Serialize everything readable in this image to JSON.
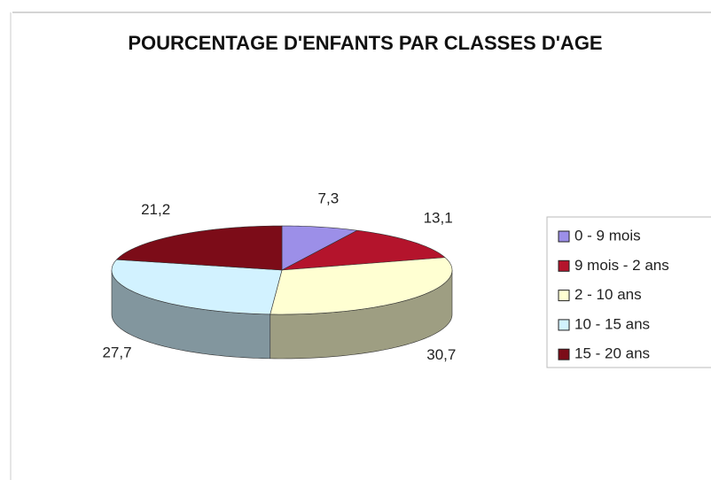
{
  "chart_data": {
    "type": "pie",
    "title": "POURCENTAGE D'ENFANTS PAR CLASSES D'AGE",
    "categories": [
      "0 - 9 mois",
      "9 mois - 2 ans",
      "2 - 10 ans",
      "10 - 15 ans",
      "15 - 20 ans"
    ],
    "values": [
      7.3,
      13.1,
      30.7,
      27.7,
      21.2
    ],
    "value_labels": [
      "7,3",
      "13,1",
      "30,7",
      "27,7",
      "21,2"
    ],
    "colors": [
      "#9c8fe8",
      "#b4142c",
      "#ffffd2",
      "#d2f2ff",
      "#7c0c18"
    ],
    "legend": "right"
  }
}
